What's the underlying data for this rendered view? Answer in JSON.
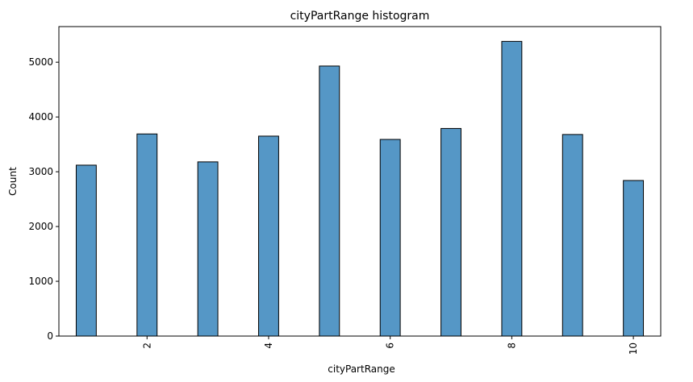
{
  "chart_data": {
    "type": "bar",
    "title": "cityPartRange histogram",
    "xlabel": "cityPartRange",
    "ylabel": "Count",
    "x": [
      1,
      2,
      3,
      4,
      5,
      6,
      7,
      8,
      9,
      10
    ],
    "values": [
      3120,
      3690,
      3180,
      3650,
      4930,
      3590,
      3790,
      5380,
      3680,
      2840
    ],
    "xlim": [
      0.55,
      10.45
    ],
    "ylim": [
      0,
      5650
    ],
    "xticks": [
      2,
      4,
      6,
      8,
      10
    ],
    "yticks": [
      0,
      1000,
      2000,
      3000,
      4000,
      5000
    ],
    "x_tick_rotation": 90,
    "bar_color": "#5597c6",
    "edge_color": "#000000",
    "grid": false,
    "legend": false
  }
}
